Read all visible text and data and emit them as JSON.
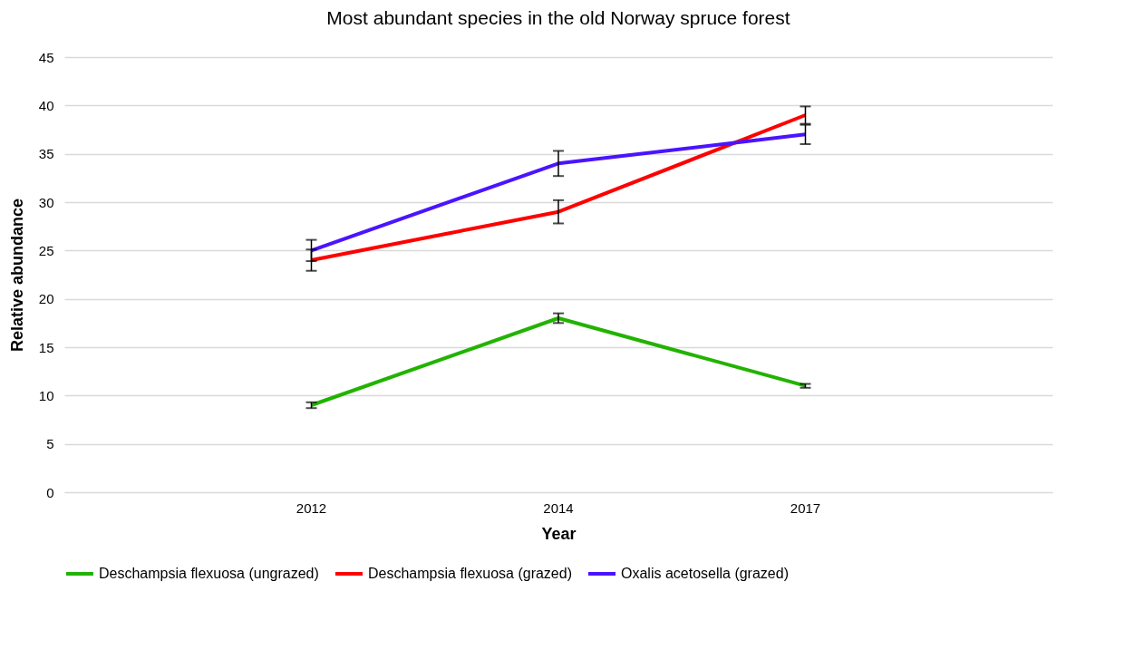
{
  "chart_data": {
    "type": "line",
    "title": "Most abundant species in the old Norway spruce forest",
    "xlabel": "Year",
    "ylabel": "Relative abundance",
    "categories": [
      "2012",
      "2014",
      "2017"
    ],
    "series": [
      {
        "name": "Deschampsia flexuosa (ungrazed)",
        "color": "#22b300",
        "values": [
          9,
          18,
          11
        ],
        "errors": [
          0.3,
          0.5,
          0.2
        ]
      },
      {
        "name": "Deschampsia flexuosa (grazed)",
        "color": "#ff0000",
        "values": [
          24,
          29,
          39
        ],
        "errors": [
          1.1,
          1.2,
          0.9
        ]
      },
      {
        "name": "Oxalis acetosella (grazed)",
        "color": "#4a14ff",
        "values": [
          25,
          34,
          37
        ],
        "errors": [
          1.1,
          1.3,
          1.0
        ]
      }
    ],
    "ylim": [
      0,
      45
    ],
    "yticks": [
      0,
      5,
      10,
      15,
      20,
      25,
      30,
      35,
      40,
      45
    ],
    "grid": "y",
    "legend": "bottom",
    "marker": "none",
    "line_style": "solid"
  }
}
